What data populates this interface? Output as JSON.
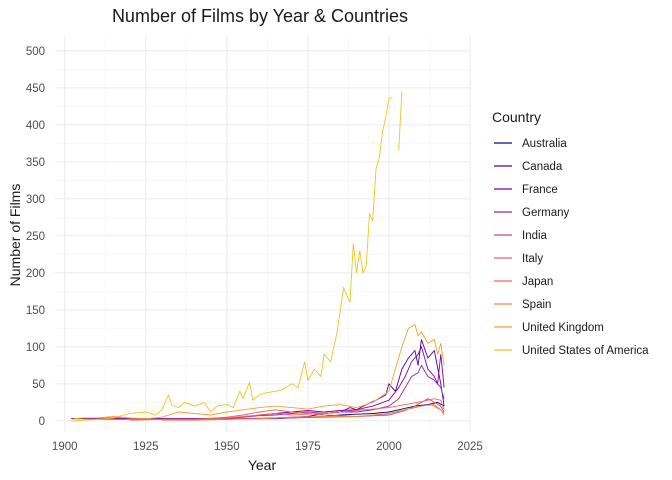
{
  "chart_data": {
    "type": "line",
    "title": "Number of Films by Year & Countries",
    "xlabel": "Year",
    "ylabel": "Number of Films",
    "xlim": [
      1897,
      2025
    ],
    "ylim": [
      -15,
      520
    ],
    "xticks": [
      1900,
      1925,
      1950,
      1975,
      2000,
      2025
    ],
    "yticks": [
      0,
      50,
      100,
      150,
      200,
      250,
      300,
      350,
      400,
      450,
      500
    ],
    "grid": true,
    "legend": {
      "title": "Country",
      "position": "right"
    },
    "series": [
      {
        "name": "Australia",
        "color": "#0d0887",
        "points": [
          [
            1902,
            3
          ],
          [
            1906,
            3
          ],
          [
            1910,
            3
          ],
          [
            1915,
            4
          ],
          [
            1920,
            3
          ],
          [
            1925,
            3
          ],
          [
            1930,
            3
          ],
          [
            1935,
            2
          ],
          [
            1940,
            2
          ],
          [
            1945,
            2
          ],
          [
            1950,
            2
          ],
          [
            1955,
            3
          ],
          [
            1960,
            3
          ],
          [
            1965,
            3
          ],
          [
            1970,
            4
          ],
          [
            1975,
            5
          ],
          [
            1980,
            6
          ],
          [
            1985,
            8
          ],
          [
            1990,
            9
          ],
          [
            1995,
            10
          ],
          [
            2000,
            12
          ],
          [
            2004,
            16
          ],
          [
            2008,
            20
          ],
          [
            2012,
            22
          ],
          [
            2015,
            25
          ],
          [
            2017,
            20
          ]
        ]
      },
      {
        "name": "Canada",
        "color": "#4c02a1",
        "points": [
          [
            1906,
            3
          ],
          [
            1915,
            3
          ],
          [
            1925,
            3
          ],
          [
            1935,
            3
          ],
          [
            1945,
            3
          ],
          [
            1955,
            3
          ],
          [
            1965,
            4
          ],
          [
            1970,
            5
          ],
          [
            1975,
            6
          ],
          [
            1980,
            10
          ],
          [
            1985,
            12
          ],
          [
            1988,
            18
          ],
          [
            1990,
            15
          ],
          [
            1993,
            22
          ],
          [
            1996,
            28
          ],
          [
            1999,
            35
          ],
          [
            2000,
            50
          ],
          [
            2002,
            40
          ],
          [
            2004,
            70
          ],
          [
            2006,
            85
          ],
          [
            2008,
            95
          ],
          [
            2009,
            75
          ],
          [
            2010,
            110
          ],
          [
            2012,
            85
          ],
          [
            2014,
            95
          ],
          [
            2015,
            72
          ],
          [
            2016,
            50
          ],
          [
            2017,
            20
          ]
        ]
      },
      {
        "name": "France",
        "color": "#7e03a8",
        "points": [
          [
            1908,
            3
          ],
          [
            1920,
            3
          ],
          [
            1930,
            3
          ],
          [
            1940,
            3
          ],
          [
            1950,
            4
          ],
          [
            1955,
            5
          ],
          [
            1960,
            8
          ],
          [
            1965,
            10
          ],
          [
            1970,
            12
          ],
          [
            1975,
            14
          ],
          [
            1980,
            12
          ],
          [
            1985,
            14
          ],
          [
            1990,
            15
          ],
          [
            1995,
            20
          ],
          [
            2000,
            28
          ],
          [
            2003,
            45
          ],
          [
            2005,
            60
          ],
          [
            2007,
            80
          ],
          [
            2009,
            90
          ],
          [
            2010,
            100
          ],
          [
            2012,
            70
          ],
          [
            2014,
            60
          ],
          [
            2015,
            50
          ],
          [
            2016,
            90
          ],
          [
            2017,
            45
          ]
        ]
      },
      {
        "name": "Germany",
        "color": "#a92395",
        "points": [
          [
            1910,
            3
          ],
          [
            1920,
            3
          ],
          [
            1930,
            3
          ],
          [
            1940,
            3
          ],
          [
            1950,
            3
          ],
          [
            1955,
            5
          ],
          [
            1960,
            7
          ],
          [
            1965,
            8
          ],
          [
            1970,
            10
          ],
          [
            1975,
            12
          ],
          [
            1980,
            10
          ],
          [
            1985,
            12
          ],
          [
            1990,
            12
          ],
          [
            1995,
            15
          ],
          [
            2000,
            20
          ],
          [
            2003,
            30
          ],
          [
            2005,
            45
          ],
          [
            2007,
            60
          ],
          [
            2009,
            65
          ],
          [
            2010,
            75
          ],
          [
            2012,
            60
          ],
          [
            2014,
            55
          ],
          [
            2016,
            45
          ],
          [
            2017,
            30
          ]
        ]
      },
      {
        "name": "India",
        "color": "#cc4778",
        "points": [
          [
            1930,
            2
          ],
          [
            1940,
            2
          ],
          [
            1950,
            3
          ],
          [
            1960,
            3
          ],
          [
            1970,
            4
          ],
          [
            1980,
            5
          ],
          [
            1990,
            6
          ],
          [
            2000,
            8
          ],
          [
            2005,
            14
          ],
          [
            2008,
            20
          ],
          [
            2010,
            25
          ],
          [
            2012,
            30
          ],
          [
            2014,
            25
          ],
          [
            2016,
            20
          ],
          [
            2017,
            12
          ]
        ]
      },
      {
        "name": "Italy",
        "color": "#e16462",
        "points": [
          [
            1910,
            2
          ],
          [
            1920,
            2
          ],
          [
            1930,
            2
          ],
          [
            1940,
            2
          ],
          [
            1950,
            5
          ],
          [
            1955,
            8
          ],
          [
            1960,
            12
          ],
          [
            1965,
            15
          ],
          [
            1970,
            12
          ],
          [
            1975,
            10
          ],
          [
            1980,
            8
          ],
          [
            1985,
            7
          ],
          [
            1990,
            6
          ],
          [
            1995,
            7
          ],
          [
            2000,
            10
          ],
          [
            2005,
            15
          ],
          [
            2010,
            20
          ],
          [
            2013,
            22
          ],
          [
            2016,
            15
          ],
          [
            2017,
            10
          ]
        ]
      },
      {
        "name": "Japan",
        "color": "#ee6a5a",
        "points": [
          [
            1920,
            1
          ],
          [
            1930,
            2
          ],
          [
            1940,
            2
          ],
          [
            1950,
            4
          ],
          [
            1955,
            6
          ],
          [
            1960,
            8
          ],
          [
            1965,
            10
          ],
          [
            1970,
            8
          ],
          [
            1975,
            9
          ],
          [
            1980,
            10
          ],
          [
            1985,
            12
          ],
          [
            1990,
            14
          ],
          [
            1995,
            16
          ],
          [
            2000,
            18
          ],
          [
            2005,
            22
          ],
          [
            2010,
            26
          ],
          [
            2014,
            30
          ],
          [
            2016,
            28
          ],
          [
            2017,
            15
          ]
        ]
      },
      {
        "name": "Spain",
        "color": "#f48849",
        "points": [
          [
            1930,
            1
          ],
          [
            1940,
            1
          ],
          [
            1950,
            2
          ],
          [
            1960,
            3
          ],
          [
            1970,
            5
          ],
          [
            1980,
            6
          ],
          [
            1990,
            6
          ],
          [
            2000,
            10
          ],
          [
            2005,
            15
          ],
          [
            2010,
            20
          ],
          [
            2014,
            22
          ],
          [
            2016,
            15
          ],
          [
            2017,
            8
          ]
        ]
      },
      {
        "name": "United Kingdom",
        "color": "#f6a030",
        "points": [
          [
            1903,
            3
          ],
          [
            1906,
            4
          ],
          [
            1910,
            4
          ],
          [
            1915,
            6
          ],
          [
            1920,
            4
          ],
          [
            1925,
            3
          ],
          [
            1930,
            5
          ],
          [
            1935,
            12
          ],
          [
            1940,
            10
          ],
          [
            1945,
            8
          ],
          [
            1950,
            12
          ],
          [
            1955,
            15
          ],
          [
            1960,
            18
          ],
          [
            1965,
            20
          ],
          [
            1970,
            18
          ],
          [
            1975,
            16
          ],
          [
            1980,
            20
          ],
          [
            1985,
            22
          ],
          [
            1990,
            18
          ],
          [
            1995,
            25
          ],
          [
            2000,
            40
          ],
          [
            2002,
            70
          ],
          [
            2004,
            100
          ],
          [
            2006,
            125
          ],
          [
            2008,
            130
          ],
          [
            2009,
            115
          ],
          [
            2010,
            120
          ],
          [
            2012,
            105
          ],
          [
            2014,
            110
          ],
          [
            2015,
            90
          ],
          [
            2016,
            105
          ],
          [
            2017,
            75
          ]
        ]
      },
      {
        "name": "United States of America",
        "color": "#f0c420",
        "points": [
          [
            1902,
            0
          ],
          [
            1906,
            1
          ],
          [
            1910,
            2
          ],
          [
            1915,
            4
          ],
          [
            1920,
            10
          ],
          [
            1925,
            12
          ],
          [
            1928,
            8
          ],
          [
            1930,
            15
          ],
          [
            1932,
            35
          ],
          [
            1933,
            22
          ],
          [
            1935,
            18
          ],
          [
            1937,
            25
          ],
          [
            1940,
            20
          ],
          [
            1943,
            25
          ],
          [
            1945,
            12
          ],
          [
            1947,
            20
          ],
          [
            1950,
            22
          ],
          [
            1952,
            18
          ],
          [
            1954,
            40
          ],
          [
            1955,
            30
          ],
          [
            1957,
            52
          ],
          [
            1958,
            28
          ],
          [
            1960,
            35
          ],
          [
            1962,
            38
          ],
          [
            1965,
            40
          ],
          [
            1967,
            42
          ],
          [
            1970,
            50
          ],
          [
            1972,
            45
          ],
          [
            1974,
            80
          ],
          [
            1975,
            55
          ],
          [
            1977,
            70
          ],
          [
            1979,
            60
          ],
          [
            1980,
            90
          ],
          [
            1982,
            80
          ],
          [
            1984,
            120
          ],
          [
            1986,
            180
          ],
          [
            1988,
            160
          ],
          [
            1989,
            240
          ],
          [
            1990,
            200
          ],
          [
            1991,
            230
          ],
          [
            1992,
            200
          ],
          [
            1993,
            210
          ],
          [
            1994,
            280
          ],
          [
            1995,
            270
          ],
          [
            1996,
            340
          ],
          [
            1997,
            355
          ],
          [
            1998,
            390
          ],
          [
            1999,
            410
          ],
          [
            2000,
            435
          ],
          [
            2001,
            437
          ],
          [
            2002,
            null
          ],
          [
            2003,
            365
          ],
          [
            2004,
            445
          ]
        ]
      }
    ]
  }
}
